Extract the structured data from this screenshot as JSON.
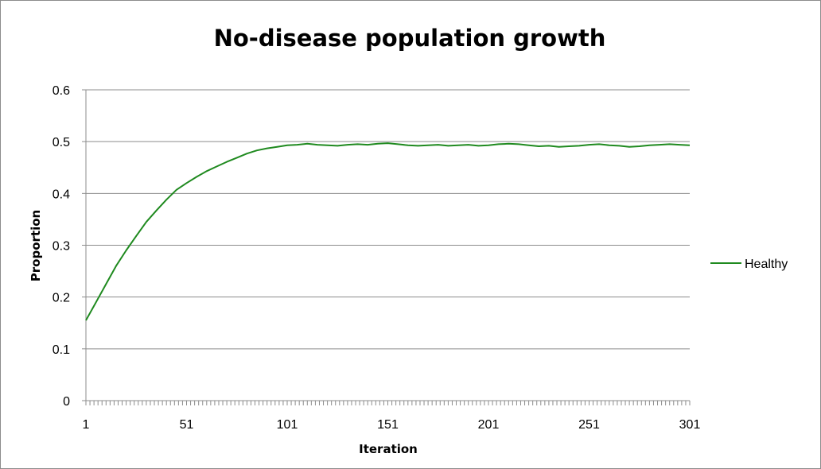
{
  "chart_data": {
    "type": "line",
    "title": "No-disease population growth",
    "xlabel": "Iteration",
    "ylabel": "Proportion",
    "xlim": [
      1,
      301
    ],
    "ylim": [
      0,
      0.6
    ],
    "yticks": [
      0,
      0.1,
      0.2,
      0.3,
      0.4,
      0.5,
      0.6
    ],
    "ytick_labels": [
      "0",
      "0.1",
      "0.2",
      "0.3",
      "0.4",
      "0.5",
      "0.6"
    ],
    "xtick_labels": [
      "1",
      "51",
      "101",
      "151",
      "201",
      "251",
      "301"
    ],
    "grid": "horizontal",
    "legend_position": "right",
    "series": [
      {
        "name": "Healthy",
        "color": "#1f8a1f",
        "x": [
          1,
          6,
          11,
          16,
          21,
          26,
          31,
          36,
          41,
          46,
          51,
          56,
          61,
          66,
          71,
          76,
          81,
          86,
          91,
          96,
          101,
          106,
          111,
          116,
          121,
          126,
          131,
          136,
          141,
          146,
          151,
          156,
          161,
          166,
          171,
          176,
          181,
          186,
          191,
          196,
          201,
          206,
          211,
          216,
          221,
          226,
          231,
          236,
          241,
          246,
          251,
          256,
          261,
          266,
          271,
          276,
          281,
          286,
          291,
          296,
          301
        ],
        "values": [
          0.155,
          0.19,
          0.225,
          0.26,
          0.29,
          0.318,
          0.345,
          0.367,
          0.388,
          0.407,
          0.42,
          0.432,
          0.443,
          0.452,
          0.461,
          0.469,
          0.477,
          0.483,
          0.487,
          0.49,
          0.493,
          0.494,
          0.496,
          0.494,
          0.493,
          0.492,
          0.494,
          0.495,
          0.494,
          0.496,
          0.497,
          0.495,
          0.493,
          0.492,
          0.493,
          0.494,
          0.492,
          0.493,
          0.494,
          0.492,
          0.493,
          0.495,
          0.496,
          0.495,
          0.493,
          0.491,
          0.492,
          0.49,
          0.491,
          0.492,
          0.494,
          0.495,
          0.493,
          0.492,
          0.49,
          0.491,
          0.493,
          0.494,
          0.495,
          0.494,
          0.493
        ]
      }
    ]
  }
}
